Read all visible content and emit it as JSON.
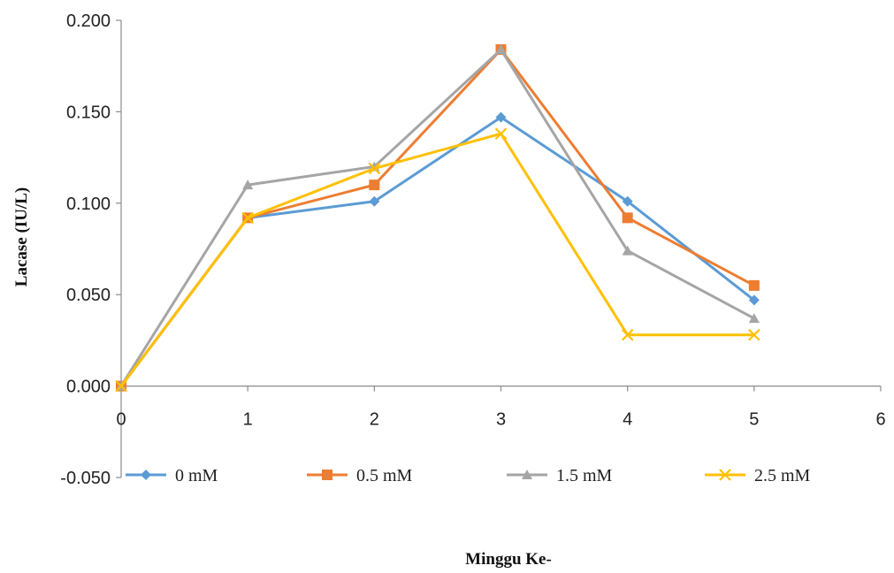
{
  "chart_data": {
    "type": "line",
    "title": "",
    "xlabel": "Minggu Ke-",
    "ylabel": "Lacase (IU/L)",
    "xlim": [
      0,
      6
    ],
    "ylim": [
      -0.05,
      0.2
    ],
    "x_ticks": [
      "0",
      "1",
      "2",
      "3",
      "4",
      "5",
      "6"
    ],
    "y_ticks": [
      "-0.050",
      "0.000",
      "0.050",
      "0.100",
      "0.150",
      "0.200"
    ],
    "x_tick_values": [
      0,
      1,
      2,
      3,
      4,
      5,
      6
    ],
    "y_tick_values": [
      -0.05,
      0,
      0.05,
      0.1,
      0.15,
      0.2
    ],
    "grid": false,
    "legend_position": "bottom",
    "series": [
      {
        "name": "0 mM",
        "color": "#5b9bd5",
        "marker": "diamond",
        "x": [
          0,
          1,
          2,
          3,
          4,
          5
        ],
        "values": [
          0.0,
          0.092,
          0.101,
          0.147,
          0.101,
          0.047
        ]
      },
      {
        "name": "0.5 mM",
        "color": "#ed7d31",
        "marker": "square",
        "x": [
          0,
          1,
          2,
          3,
          4,
          5
        ],
        "values": [
          0.0,
          0.092,
          0.11,
          0.184,
          0.092,
          0.055
        ]
      },
      {
        "name": "1.5 mM",
        "color": "#a5a5a5",
        "marker": "triangle",
        "x": [
          0,
          1,
          2,
          3,
          4,
          5
        ],
        "values": [
          0.0,
          0.11,
          0.12,
          0.184,
          0.074,
          0.037
        ]
      },
      {
        "name": "2.5 mM",
        "color": "#ffc000",
        "marker": "x",
        "x": [
          0,
          1,
          2,
          3,
          4,
          5
        ],
        "values": [
          0.0,
          0.092,
          0.119,
          0.138,
          0.028,
          0.028
        ]
      }
    ]
  }
}
